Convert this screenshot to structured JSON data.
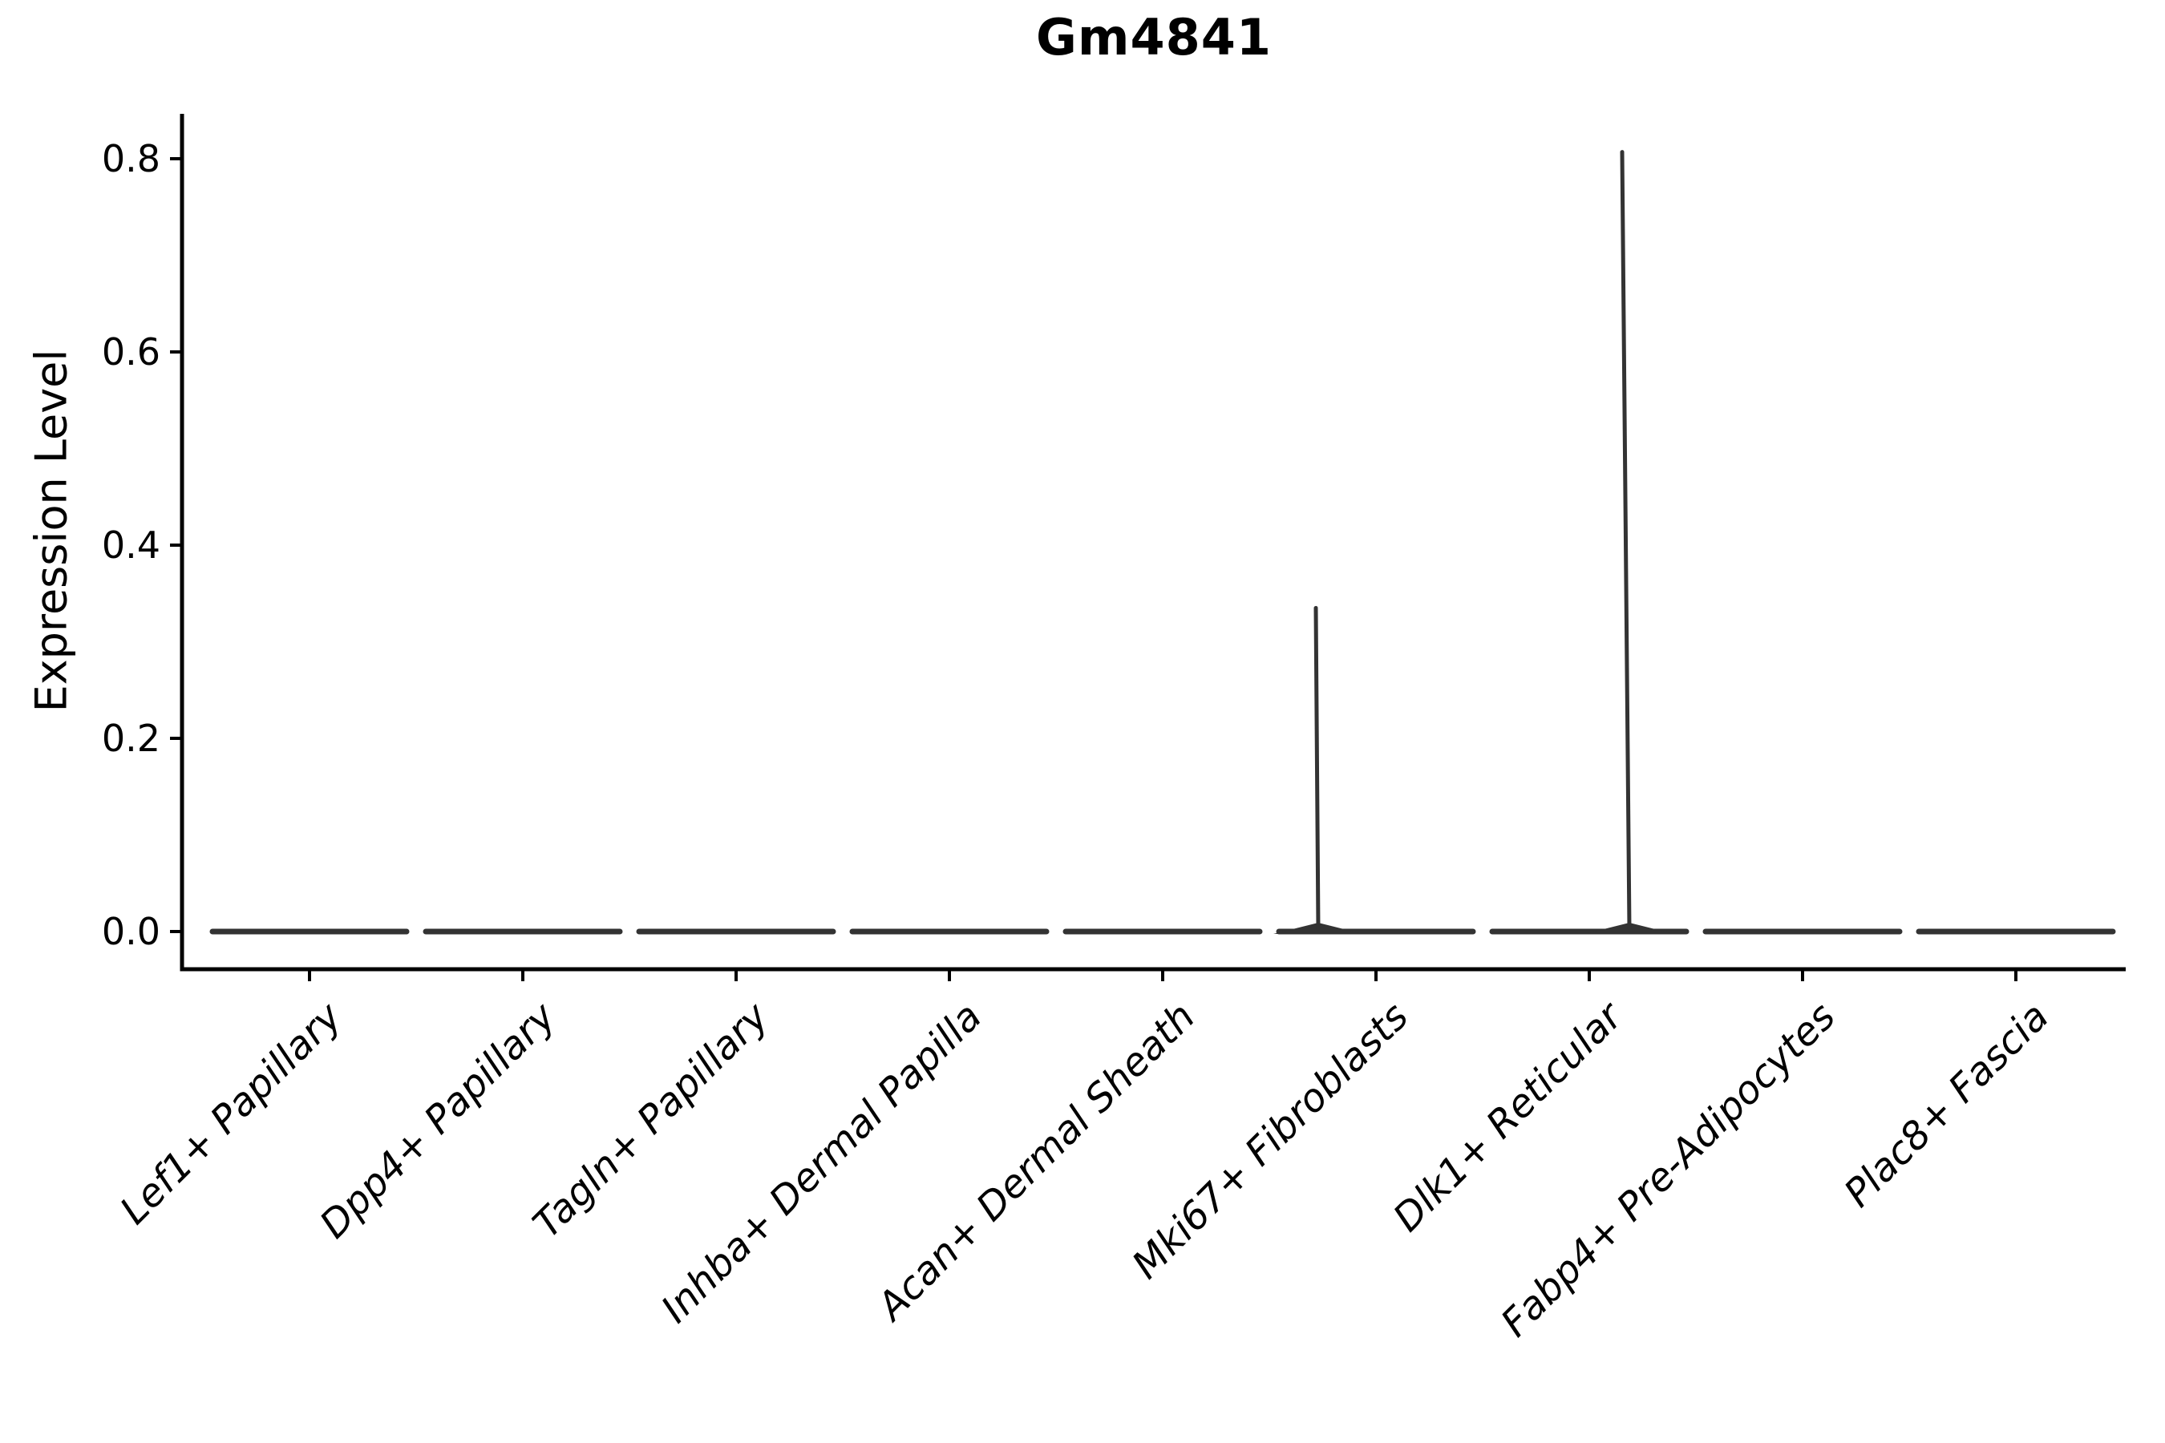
{
  "title": "Gm4841",
  "colors": {
    "axis": "#000000",
    "violin": "#333333",
    "text": "#000000",
    "background": "#ffffff"
  },
  "chart_data": {
    "type": "violin",
    "title": "Gm4841",
    "xlabel": "",
    "ylabel": "Expression Level",
    "grid": false,
    "legend": null,
    "ylim": [
      -0.039,
      0.847
    ],
    "yticks": [
      "0.0",
      "0.2",
      "0.4",
      "0.6",
      "0.8"
    ],
    "ytick_values": [
      0.0,
      0.2,
      0.4,
      0.6,
      0.8
    ],
    "categories": [
      "Lef1+ Papillary",
      "Dpp4+ Papillary",
      "Tagln+ Papillary",
      "Inhba+ Dermal Papilla",
      "Acan+ Dermal Sheath",
      "Mki67+ Fibroblasts",
      "Dlk1+ Reticular",
      "Fabp4+ Pre-Adipocytes",
      "Plac8+ Fascia"
    ],
    "series": [
      {
        "name": "Lef1+ Papillary",
        "median": 0.0,
        "max": 0.0
      },
      {
        "name": "Dpp4+ Papillary",
        "median": 0.0,
        "max": 0.0
      },
      {
        "name": "Tagln+ Papillary",
        "median": 0.0,
        "max": 0.0
      },
      {
        "name": "Inhba+ Dermal Papilla",
        "median": 0.0,
        "max": 0.0
      },
      {
        "name": "Acan+ Dermal Sheath",
        "median": 0.0,
        "max": 0.0
      },
      {
        "name": "Mki67+ Fibroblasts",
        "median": 0.0,
        "max": 0.335
      },
      {
        "name": "Dlk1+ Reticular",
        "median": 0.0,
        "max": 0.807
      },
      {
        "name": "Fabp4+ Pre-Adipocytes",
        "median": 0.0,
        "max": 0.0
      },
      {
        "name": "Plac8+ Fascia",
        "median": 0.0,
        "max": 0.0
      }
    ],
    "spikes": [
      {
        "index": 5,
        "category": "Mki67+ Fibroblasts",
        "value": 0.335,
        "base_offset": -72,
        "top_offset": -75
      },
      {
        "index": 6,
        "category": "Dlk1+ Reticular",
        "value": 0.807,
        "base_offset": 50,
        "top_offset": 41
      }
    ]
  }
}
